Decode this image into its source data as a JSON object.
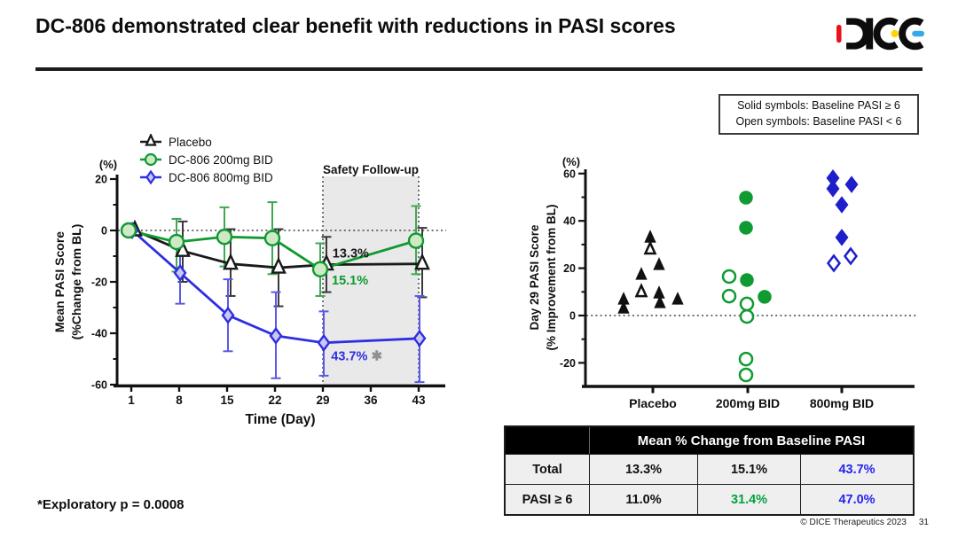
{
  "header": {
    "title": "DC-806 demonstrated clear benefit with reductions in PASI scores",
    "logo_text": "DICE"
  },
  "colors": {
    "placebo": "#1a1a1a",
    "green_200mg": "#0f9a32",
    "blue_800mg_line": "#2e2ee2",
    "blue_800mg_scatter": "#1e1ecb",
    "table_green": "#00a33c",
    "table_blue": "#2525f0",
    "region_fill": "#e9e9e9",
    "annotation_star_gray": "#8f8f8f"
  },
  "scatter_note": {
    "line1": "Solid symbols: Baseline PASI ≥ 6",
    "line2": "Open symbols: Baseline PASI < 6"
  },
  "chart_data": [
    {
      "type": "line",
      "title": "",
      "xlabel": "Time (Day)",
      "ylabel_lines": [
        "Mean PASI Score",
        "(%Change from BL)"
      ],
      "y_unit": "(%)",
      "xlim": [
        1,
        43
      ],
      "ylim": [
        -60,
        20
      ],
      "x_ticks": [
        1,
        8,
        15,
        22,
        29,
        36,
        43
      ],
      "y_ticks": [
        20,
        0,
        -20,
        -40,
        -60
      ],
      "y_minor_ticks": [
        10,
        -10,
        -30,
        -50
      ],
      "grid": false,
      "legend_position": "top-left",
      "series": [
        {
          "name": "Placebo",
          "marker": "triangle",
          "color": "#1a1a1a",
          "err_color": "#3a3a3a",
          "marker_fill": "#ffffff",
          "marker_size": 8,
          "x_offset": 4,
          "x": [
            1,
            8,
            15,
            22,
            29,
            43
          ],
          "y": [
            0,
            -8,
            -13,
            -14.5,
            -13.3,
            -13
          ],
          "err_lo": [
            0,
            -20,
            -25.5,
            -29.5,
            -24,
            -26
          ],
          "err_hi": [
            0,
            3.5,
            0.5,
            0.5,
            -2.5,
            1
          ]
        },
        {
          "name": "DC-806 200mg BID",
          "marker": "circle",
          "color": "#0f9a32",
          "err_color": "#3fa854",
          "marker_fill": "#cfe9c6",
          "marker_size": 8,
          "x_offset": -3,
          "x": [
            1,
            8,
            15,
            22,
            29,
            43
          ],
          "y": [
            0,
            -4.5,
            -2.5,
            -3,
            -15.1,
            -4
          ],
          "err_lo": [
            0,
            -16,
            -14,
            -17,
            -25.5,
            -17
          ],
          "err_hi": [
            0,
            4.5,
            9,
            11,
            -5,
            9.5
          ]
        },
        {
          "name": "DC-806 800mg BID",
          "marker": "diamond",
          "color": "#2e2ee2",
          "err_color": "#5a5ae8",
          "marker_fill": "#c8c8f0",
          "marker_size": 7.5,
          "x_offset": 1,
          "x": [
            1,
            8,
            15,
            22,
            29,
            43
          ],
          "y": [
            0,
            -16.5,
            -33,
            -41,
            -43.7,
            -42
          ],
          "err_lo": [
            0,
            -28.5,
            -47,
            -57.5,
            -56.5,
            -59
          ],
          "err_hi": [
            0,
            -4,
            -19,
            -24,
            -31.5,
            -25.5
          ]
        }
      ],
      "shaded_region": {
        "label": "Safety Follow-up",
        "x_from": 29,
        "x_to": 43
      },
      "annotations": [
        {
          "text": "13.3%",
          "color": "#1a1a1a",
          "x": 30.4,
          "y": -10.5
        },
        {
          "text": "15.1%",
          "color": "#0f9a32",
          "x": 30.3,
          "y": -21
        },
        {
          "text": "43.7%",
          "color": "#2e2ee2",
          "x": 30.2,
          "y": -50.5,
          "suffix": "✱",
          "suffix_color": "#8f8f8f"
        }
      ]
    },
    {
      "type": "scatter",
      "title": "",
      "xlabel": "",
      "ylabel_lines": [
        "Day 29 PASI Score",
        "(% Improvement from BL)"
      ],
      "y_unit": "(%)",
      "ylim": [
        -30,
        60
      ],
      "y_ticks": [
        60,
        40,
        20,
        0,
        -20
      ],
      "y_minor_ticks": [
        50,
        30,
        10,
        -10
      ],
      "zero_line": true,
      "categories": [
        "Placebo",
        "200mg BID",
        "800mg BID"
      ],
      "groups": [
        {
          "name": "Placebo",
          "marker": "triangle",
          "color": "#111111",
          "points": [
            [
              -33,
              6.4,
              "solid"
            ],
            [
              -33,
              2.6,
              "solid"
            ],
            [
              -13,
              16.9,
              "solid"
            ],
            [
              -13,
              9.7,
              "open"
            ],
            [
              -3,
              32.6,
              "solid"
            ],
            [
              -3,
              27.7,
              "open"
            ],
            [
              7,
              21,
              "solid"
            ],
            [
              7,
              9,
              "solid"
            ],
            [
              8,
              4.9,
              "solid"
            ],
            [
              28,
              6.4,
              "solid"
            ]
          ]
        },
        {
          "name": "200mg BID",
          "marker": "circle",
          "color": "#0f9a32",
          "points": [
            [
              -2,
              49.8,
              "solid"
            ],
            [
              -2,
              37.1,
              "solid"
            ],
            [
              -1,
              15,
              "solid"
            ],
            [
              19,
              7.9,
              "solid"
            ],
            [
              -21,
              16.5,
              "open"
            ],
            [
              -21,
              8.2,
              "open"
            ],
            [
              -1,
              4.9,
              "open"
            ],
            [
              -1,
              -0.4,
              "open"
            ],
            [
              -2,
              -18.4,
              "open"
            ],
            [
              -2,
              -25.1,
              "open"
            ]
          ]
        },
        {
          "name": "800mg BID",
          "marker": "diamond",
          "color": "#1e1ecb",
          "points": [
            [
              -10,
              58.1,
              "solid"
            ],
            [
              -10,
              53.6,
              "solid"
            ],
            [
              11,
              55.4,
              "solid"
            ],
            [
              0,
              46.8,
              "solid"
            ],
            [
              0,
              33,
              "solid"
            ],
            [
              -9,
              22.1,
              "open"
            ],
            [
              10,
              25.1,
              "open"
            ]
          ]
        }
      ]
    }
  ],
  "table": {
    "header": "Mean % Change from Baseline PASI",
    "rows": [
      {
        "cells": [
          "Total",
          "13.3%",
          "15.1%",
          "43.7%"
        ],
        "colors": [
          "#111111",
          "#111111",
          "#111111",
          "#2525f0"
        ]
      },
      {
        "cells": [
          "PASI ≥ 6",
          "11.0%",
          "31.4%",
          "47.0%"
        ],
        "colors": [
          "#111111",
          "#111111",
          "#00a33c",
          "#2525f0"
        ]
      }
    ]
  },
  "footnote": "*Exploratory p = 0.0008",
  "footer": {
    "copyright": "© DICE Therapeutics 2023",
    "page": "31"
  }
}
